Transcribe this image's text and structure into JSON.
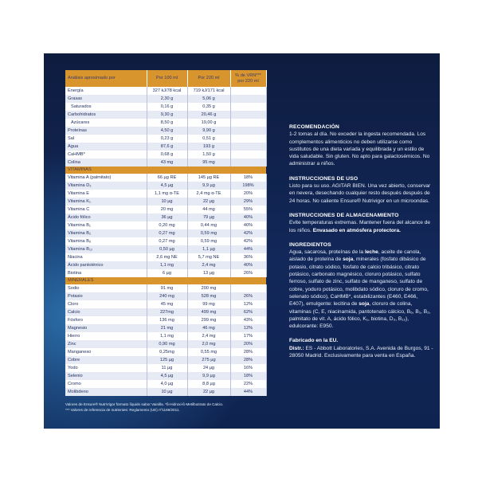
{
  "table": {
    "headers": [
      "Análisis aproximado por",
      "Por 100 ml",
      "Por 220 ml",
      "% de VRN*** por 220 ml"
    ],
    "sections": [
      {
        "title": "",
        "rows": [
          [
            "Energía",
            "327 kJ/78 kcal",
            "719 kJ/171 kcal",
            ""
          ],
          [
            "Grasas",
            "2,30 g",
            "5,06 g",
            ""
          ],
          [
            "Saturados",
            "0,16 g",
            "0,35 g",
            "",
            "indent"
          ],
          [
            "Carbohidratos",
            "9,30 g",
            "20,46 g",
            ""
          ],
          [
            "Azúcares",
            "8,50 g",
            "19,00 g",
            "",
            "indent"
          ],
          [
            "Proteínas",
            "4,50 g",
            "9,90 g",
            ""
          ],
          [
            "Sal",
            "0,23 g",
            "0,51 g",
            ""
          ],
          [
            "Agua",
            "87,6 g",
            "193 g",
            ""
          ],
          [
            "CaHMB*",
            "0,68 g",
            "1,50 g",
            ""
          ],
          [
            "Colina",
            "43 mg",
            "95 mg",
            ""
          ]
        ]
      },
      {
        "title": "VITAMINAS",
        "rows": [
          [
            "Vitamina A (palmitato)",
            "66 µg RE",
            "145 µg RE",
            "18%"
          ],
          [
            "Vitamina D₃",
            "4,5 µg",
            "9,9 µg",
            "198%"
          ],
          [
            "Vitamina E",
            "1,1 mg α-TE",
            "2,4 mg α-TE",
            "20%"
          ],
          [
            "Vitamina K₁",
            "10 µg",
            "22 µg",
            "29%"
          ],
          [
            "Vitamina C",
            "20 mg",
            "44 mg",
            "55%"
          ],
          [
            "Ácido fólico",
            "36 µg",
            "79 µg",
            "40%"
          ],
          [
            "Vitamina B₁",
            "0,20 mg",
            "0,44 mg",
            "40%"
          ],
          [
            "Vitamina B₂",
            "0,27 mg",
            "0,59 mg",
            "42%"
          ],
          [
            "Vitamina B₆",
            "0,27 mg",
            "0,59 mg",
            "42%"
          ],
          [
            "Vitamina B₁₂",
            "0,50 µg",
            "1,1 µg",
            "44%"
          ],
          [
            "Niacina",
            "2,6 mg NE",
            "5,7 mg NE",
            "36%"
          ],
          [
            "Ácido pantoténico",
            "1,1 mg",
            "2,4 mg",
            "40%"
          ],
          [
            "Biotina",
            "6 µg",
            "13 µg",
            "26%"
          ]
        ]
      },
      {
        "title": "MINERALES",
        "rows": [
          [
            "Sodio",
            "91 mg",
            "200 mg",
            ""
          ],
          [
            "Potasio",
            "240 mg",
            "528 mg",
            "26%"
          ],
          [
            "Cloro",
            "45 mg",
            "99 mg",
            "12%"
          ],
          [
            "Calcio",
            "227mg",
            "499 mg",
            "62%"
          ],
          [
            "Fósforo",
            "136 mg",
            "299 mg",
            "43%"
          ],
          [
            "Magnesio",
            "21 mg",
            "46 mg",
            "12%"
          ],
          [
            "Hierro",
            "1,1 mg",
            "2,4 mg",
            "17%"
          ],
          [
            "Zinc",
            "0,90 mg",
            "2,0 mg",
            "20%"
          ],
          [
            "Manganeso",
            "0,25mg",
            "0,55 mg",
            "28%"
          ],
          [
            "Cobre",
            "125 µg",
            "275 µg",
            "28%"
          ],
          [
            "Yodo",
            "11 µg",
            "24 µg",
            "16%"
          ],
          [
            "Selenio",
            "4,5 µg",
            "9,9 µg",
            "18%"
          ],
          [
            "Cromo",
            "4,0 µg",
            "8,8 µg",
            "22%"
          ],
          [
            "Molibdeno",
            "10 µg",
            "22 µg",
            "44%"
          ]
        ]
      }
    ],
    "footnote_1": "Valores de Ensure® NutriVigor formato líquido sabor Vainilla. *ß-Hidroxi-ß-Metilbutirato de Calcio.",
    "footnote_2": "*** Valores de referencia de nutrientes: Reglamento (UE) nº1169/2011."
  },
  "info": [
    {
      "title": "RECOMENDACIÓN",
      "text": [
        [
          "1-2 tomas al día. No exceder la ingesta recomendada. Los complementos alimenticios no deben utilizarse como sustitutos de una dieta variada y equilibrada y un estilo de vida saludable. Sin gluten. No apto para galactosémicos. No administrar a niños.",
          false
        ]
      ]
    },
    {
      "title": "INSTRUCCIONES DE USO",
      "text": [
        [
          "Listo para su uso. AGITAR BIEN. Una vez abierto, conservar en nevera, desechando cualquier resto después después de 24 horas. No caliente Ensure® Nutrivigor en un microondas.",
          false
        ]
      ]
    },
    {
      "title": "INSTRUCCIONES DE ALMACENAMIENTO",
      "text": [
        [
          "Evite temperaturas extremas. Mantener fuera del alcance de los niños. ",
          false
        ],
        [
          "Envasado en atmósfera protectora.",
          true
        ]
      ]
    },
    {
      "title": "INGREDIENTOS",
      "text": [
        [
          "Agua, sacarosa, proteínas de la ",
          false
        ],
        [
          "leche",
          true
        ],
        [
          ", aceite de canola, aislado de proteína de ",
          false
        ],
        [
          "soja",
          true
        ],
        [
          ", minerales (fosfato dibásico de potasio, citrato sódico, fosfato de calcio tribásico, citrato potásico, carbonato magnésico, cloruro potásico, sulfato ferroso, sulfato de zinc, sulfato de manganeso, sulfato de cobre, yoduro potásico, molibdato sódico, cloruro de cromo, selenato sódico), CaHMB*, estabilizantes (E460, E466, E407), emulgente: lecitina de ",
          false
        ],
        [
          "soja",
          true
        ],
        [
          ", cloruro de colina, vitaminas (C, E, niacinamida, pantotenato cálcico, B₆, B₁, B₂, palmitato de vit. A, ácido fólico, K₁, biotina, D₃, B₁₂), edulcorante: E950.",
          false
        ]
      ]
    },
    {
      "title": "",
      "text": [
        [
          "Fabricado en la EU.",
          true
        ],
        [
          "\n",
          false
        ],
        [
          "Distr.:",
          true
        ],
        [
          " ES - Abbott Laboratories, S.A. Avenida de Burgos, 91 - 28050 Madrid. Exclusivamente para venta en España.",
          false
        ]
      ]
    }
  ]
}
